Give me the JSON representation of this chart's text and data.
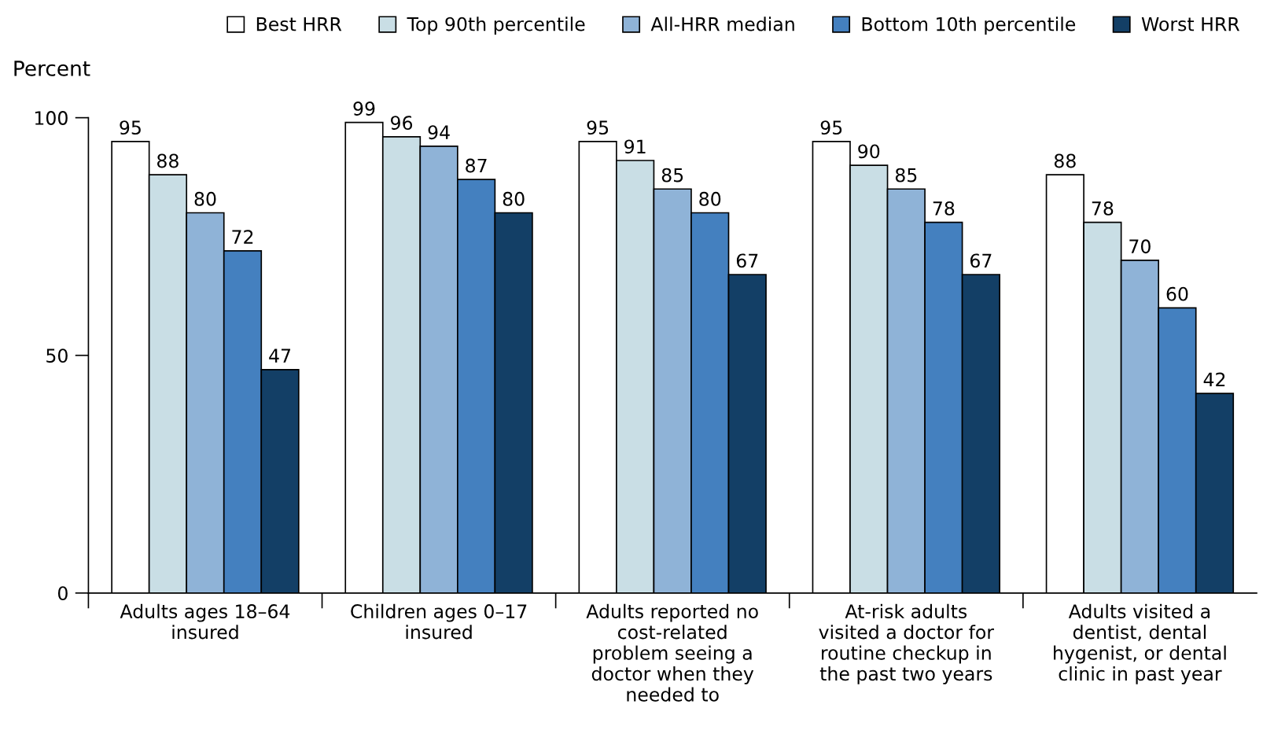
{
  "chart_data": {
    "type": "bar",
    "ylabel": "Percent",
    "categories": [
      "Adults ages 18–64\ninsured",
      "Children ages 0–17\ninsured",
      "Adults reported no\ncost-related\nproblem seeing a\ndoctor when they\nneeded to",
      "At-risk adults\nvisited a doctor for\nroutine checkup in\nthe past two years",
      "Adults visited a\ndentist, dental\nhygenist, or dental\nclinic in past year"
    ],
    "series": [
      {
        "name": "Best HRR",
        "color": "#ffffff",
        "values": [
          95,
          99,
          95,
          95,
          88
        ]
      },
      {
        "name": "Top 90th percentile",
        "color": "#c9dee5",
        "values": [
          88,
          96,
          91,
          90,
          78
        ]
      },
      {
        "name": "All-HRR median",
        "color": "#8fb3d7",
        "values": [
          80,
          94,
          85,
          85,
          70
        ]
      },
      {
        "name": "Bottom 10th percentile",
        "color": "#4480bf",
        "values": [
          72,
          87,
          80,
          78,
          60
        ]
      },
      {
        "name": "Worst HRR",
        "color": "#133f66",
        "values": [
          47,
          80,
          67,
          67,
          42
        ]
      }
    ],
    "ylim": [
      0,
      100
    ],
    "yticks": [
      0,
      50,
      100
    ],
    "grid": false,
    "legend": "top",
    "data_labels": true
  }
}
